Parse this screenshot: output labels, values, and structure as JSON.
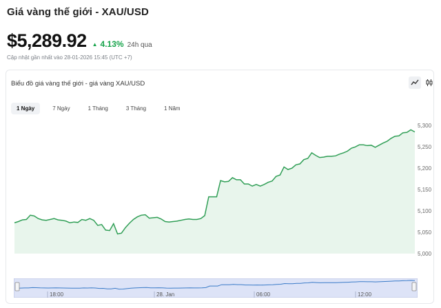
{
  "header": {
    "title": "Giá vàng thế giới - XAU/USD",
    "price": "$5,289.92",
    "change": "4.13%",
    "period": "24h qua",
    "updated": "Cập nhật gần nhất vào 28-01-2026 15:45 (UTC +7)"
  },
  "card": {
    "title": "Biểu đồ giá vàng thế giới - giá vàng XAU/USD",
    "controls": [
      {
        "name": "line-chart-icon",
        "active": true
      },
      {
        "name": "candlestick-icon",
        "active": false
      }
    ]
  },
  "tabs": [
    {
      "label": "1 Ngày",
      "active": true
    },
    {
      "label": "7 Ngày",
      "active": false
    },
    {
      "label": "1 Tháng",
      "active": false
    },
    {
      "label": "3 Tháng",
      "active": false
    },
    {
      "label": "1 Năm",
      "active": false
    }
  ],
  "colors": {
    "line": "#2f9e55",
    "area": "#e8f5ec",
    "positive": "#16a34a",
    "navigator_fill": "#dde3f7",
    "navigator_line": "#3a7bc8"
  },
  "chart_data": {
    "type": "area",
    "title": "",
    "xlabel": "",
    "ylabel": "",
    "ylim": [
      5000,
      5310
    ],
    "yticks": [
      "5,000",
      "5,050",
      "5,100",
      "5,150",
      "5,200",
      "5,250",
      "5,300"
    ],
    "grid": false,
    "series": [
      {
        "values": [
          5072,
          5075,
          5079,
          5080,
          5090,
          5088,
          5082,
          5079,
          5078,
          5080,
          5082,
          5079,
          5078,
          5076,
          5072,
          5074,
          5073,
          5080,
          5078,
          5082,
          5078,
          5066,
          5068,
          5055,
          5054,
          5070,
          5046,
          5048,
          5061,
          5071,
          5080,
          5086,
          5090,
          5091,
          5083,
          5084,
          5085,
          5081,
          5075,
          5074,
          5075,
          5076,
          5078,
          5080,
          5081,
          5080,
          5080,
          5082,
          5089,
          5133,
          5133,
          5133,
          5171,
          5168,
          5169,
          5178,
          5173,
          5173,
          5163,
          5163,
          5158,
          5162,
          5158,
          5162,
          5167,
          5170,
          5181,
          5184,
          5203,
          5197,
          5200,
          5208,
          5210,
          5220,
          5223,
          5236,
          5230,
          5225,
          5226,
          5228,
          5228,
          5229,
          5233,
          5236,
          5240,
          5247,
          5250,
          5255,
          5255,
          5253,
          5254,
          5249,
          5254,
          5259,
          5263,
          5270,
          5275,
          5276,
          5283,
          5284,
          5290,
          5285
        ]
      }
    ],
    "navigator_labels": [
      "18:00",
      "28. Jan",
      "06:00",
      "12:00"
    ]
  }
}
